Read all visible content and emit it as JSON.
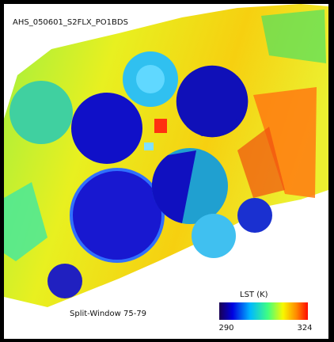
{
  "image": {
    "title": "AHS_050601_S2FLX_PO1BDS",
    "caption": "Split-Window 75-79"
  },
  "legend": {
    "title": "LST (K)",
    "min_label": "290",
    "max_label": "324"
  }
}
